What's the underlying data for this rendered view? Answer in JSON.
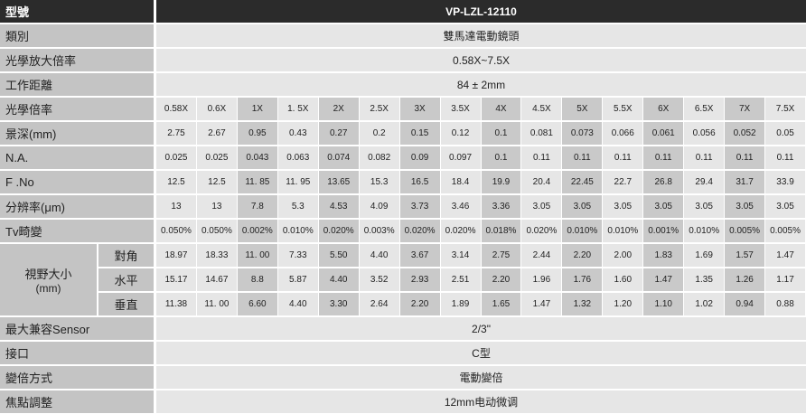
{
  "table": {
    "header": [
      "型號",
      "VP-LZL-12110"
    ],
    "spec_rows": [
      [
        "類別",
        "雙馬達電動鏡頭"
      ],
      [
        "光學放大倍率",
        "0.58X~7.5X"
      ],
      [
        "工作距離",
        "84 ± 2mm"
      ]
    ],
    "grid_rows": [
      {
        "label": "光學倍率",
        "values": [
          "0.58X",
          "0.6X",
          "1X",
          "1. 5X",
          "2X",
          "2.5X",
          "3X",
          "3.5X",
          "4X",
          "4.5X",
          "5X",
          "5.5X",
          "6X",
          "6.5X",
          "7X",
          "7.5X"
        ]
      },
      {
        "label": "景深(mm)",
        "values": [
          "2.75",
          "2.67",
          "0.95",
          "0.43",
          "0.27",
          "0.2",
          "0.15",
          "0.12",
          "0.1",
          "0.081",
          "0.073",
          "0.066",
          "0.061",
          "0.056",
          "0.052",
          "0.05"
        ]
      },
      {
        "label": "N.A.",
        "values": [
          "0.025",
          "0.025",
          "0.043",
          "0.063",
          "0.074",
          "0.082",
          "0.09",
          "0.097",
          "0.1",
          "0.11",
          "0.11",
          "0.11",
          "0.11",
          "0.11",
          "0.11",
          "0.11"
        ]
      },
      {
        "label": "F .No",
        "values": [
          "12.5",
          "12.5",
          "11. 85",
          "11. 95",
          "13.65",
          "15.3",
          "16.5",
          "18.4",
          "19.9",
          "20.4",
          "22.45",
          "22.7",
          "26.8",
          "29.4",
          "31.7",
          "33.9"
        ]
      },
      {
        "label": "分辨率(μm)",
        "values": [
          "13",
          "13",
          "7.8",
          "5.3",
          "4.53",
          "4.09",
          "3.73",
          "3.46",
          "3.36",
          "3.05",
          "3.05",
          "3.05",
          "3.05",
          "3.05",
          "3.05",
          "3.05"
        ]
      },
      {
        "label": "Tv畸變",
        "values": [
          "0.050%",
          "0.050%",
          "0.002%",
          "0.010%",
          "0.020%",
          "0.003%",
          "0.020%",
          "0.020%",
          "0.018%",
          "0.020%",
          "0.010%",
          "0.010%",
          "0.001%",
          "0.010%",
          "0.005%",
          "0.005%"
        ]
      }
    ],
    "field_of_view": {
      "label": "視野大小",
      "unit": "(mm)",
      "rows": [
        {
          "label": "對角",
          "values": [
            "18.97",
            "18.33",
            "11. 00",
            "7.33",
            "5.50",
            "4.40",
            "3.67",
            "3.14",
            "2.75",
            "2.44",
            "2.20",
            "2.00",
            "1.83",
            "1.69",
            "1.57",
            "1.47"
          ]
        },
        {
          "label": "水平",
          "values": [
            "15.17",
            "14.67",
            "8.8",
            "5.87",
            "4.40",
            "3.52",
            "2.93",
            "2.51",
            "2.20",
            "1.96",
            "1.76",
            "1.60",
            "1.47",
            "1.35",
            "1.26",
            "1.17"
          ]
        },
        {
          "label": "垂直",
          "values": [
            "11.38",
            "11. 00",
            "6.60",
            "4.40",
            "3.30",
            "2.64",
            "2.20",
            "1.89",
            "1.65",
            "1.47",
            "1.32",
            "1.20",
            "1.10",
            "1.02",
            "0.94",
            "0.88"
          ]
        }
      ]
    },
    "footer_rows": [
      [
        "最大兼容Sensor",
        "2/3\""
      ],
      [
        "接口",
        "C型"
      ],
      [
        "變倍方式",
        "電動變倍"
      ],
      [
        "焦點調整",
        "12mm电动微调"
      ]
    ]
  }
}
